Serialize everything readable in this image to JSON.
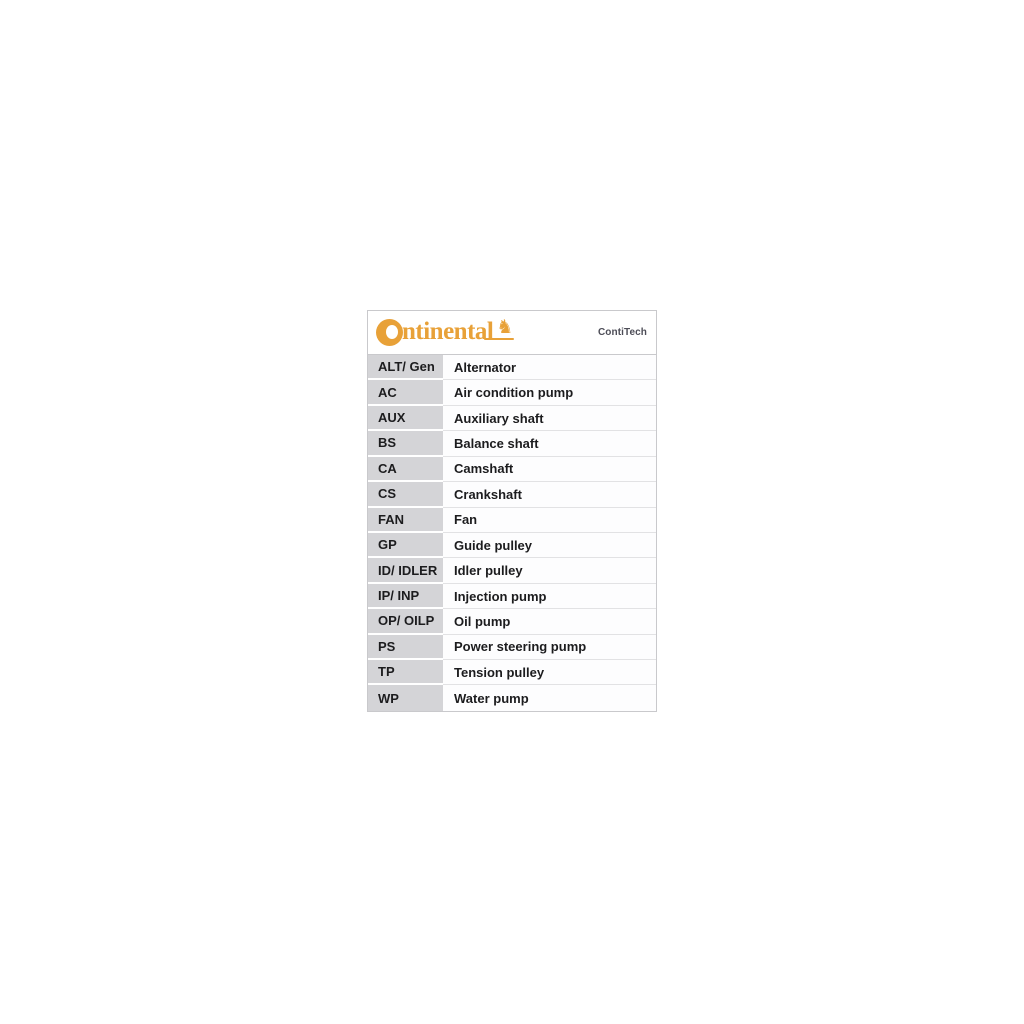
{
  "branding": {
    "wordmark_full": "Continental",
    "wordmark_tail": "ntinental",
    "horse_glyph": "♞",
    "logo_color": "#E8A138",
    "subbrand_label": "ContiTech"
  },
  "table": {
    "rows": [
      {
        "abbr": "ALT/ Gen",
        "meaning": "Alternator"
      },
      {
        "abbr": "AC",
        "meaning": "Air condition pump"
      },
      {
        "abbr": "AUX",
        "meaning": "Auxiliary shaft"
      },
      {
        "abbr": "BS",
        "meaning": "Balance shaft"
      },
      {
        "abbr": "CA",
        "meaning": "Camshaft"
      },
      {
        "abbr": "CS",
        "meaning": "Crankshaft"
      },
      {
        "abbr": "FAN",
        "meaning": "Fan"
      },
      {
        "abbr": "GP",
        "meaning": "Guide pulley"
      },
      {
        "abbr": "ID/ IDLER",
        "meaning": "Idler pulley"
      },
      {
        "abbr": "IP/ INP",
        "meaning": "Injection pump"
      },
      {
        "abbr": "OP/ OILP",
        "meaning": "Oil pump"
      },
      {
        "abbr": "PS",
        "meaning": "Power steering pump"
      },
      {
        "abbr": "TP",
        "meaning": "Tension pulley"
      },
      {
        "abbr": "WP",
        "meaning": "Water pump"
      }
    ]
  },
  "colors": {
    "abbr_cell_bg": "#D4D4D7",
    "row_divider": "#E2E2E4",
    "table_border": "#C9C9CC",
    "text": "#1C1C1E",
    "subbrand_text": "#4D4D57"
  }
}
